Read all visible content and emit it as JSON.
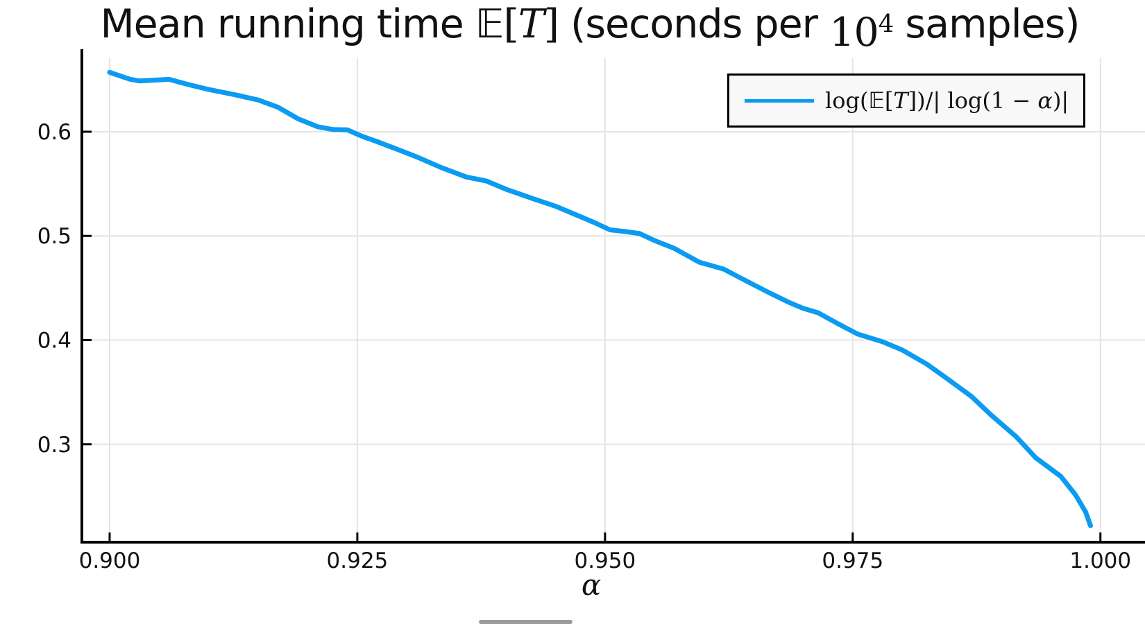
{
  "title": {
    "part1": "Mean running time ",
    "E": "𝔼",
    "lbracket": "[",
    "T": "T",
    "rbracket": "]",
    "part2": " (seconds per ",
    "pow_base": "10",
    "pow_exp": "4",
    "part3": " samples)"
  },
  "legend": {
    "parts": {
      "p1": "log(",
      "E": "𝔼",
      "lb": "[",
      "T": "T",
      "p2": "])/| log(1 − ",
      "alpha": "α",
      "p3": ")|"
    }
  },
  "chart_data": {
    "type": "line",
    "title": "Mean running time E[T] (seconds per 10^4 samples)",
    "xlabel": "α",
    "ylabel": "",
    "xlim": [
      0.8972,
      1.0045
    ],
    "ylim": [
      0.206,
      0.6712
    ],
    "grid": true,
    "legend_position": "top-right",
    "xticks": [
      0.9,
      0.925,
      0.95,
      0.975,
      1.0
    ],
    "xticklabels": [
      "0.900",
      "0.925",
      "0.950",
      "0.975",
      "1.000"
    ],
    "yticks": [
      0.3,
      0.4,
      0.5,
      0.6
    ],
    "yticklabels": [
      "0.3",
      "0.4",
      "0.5",
      "0.6"
    ],
    "series": [
      {
        "name": "log(E[T])/|log(1 − α)|",
        "color": "#0b9bf0",
        "line_width": 7,
        "x": [
          0.9,
          0.902,
          0.903,
          0.9045,
          0.906,
          0.908,
          0.91,
          0.9125,
          0.915,
          0.917,
          0.919,
          0.921,
          0.9225,
          0.924,
          0.9255,
          0.927,
          0.929,
          0.931,
          0.9335,
          0.936,
          0.938,
          0.94,
          0.9425,
          0.945,
          0.9475,
          0.949,
          0.9505,
          0.952,
          0.9535,
          0.955,
          0.957,
          0.9595,
          0.962,
          0.964,
          0.9665,
          0.9685,
          0.97,
          0.9715,
          0.9735,
          0.9755,
          0.978,
          0.98,
          0.9825,
          0.9845,
          0.987,
          0.989,
          0.9915,
          0.9935,
          0.995,
          0.996,
          0.9975,
          0.9985,
          0.999
        ],
        "y": [
          0.657,
          0.6505,
          0.6487,
          0.6495,
          0.6503,
          0.6452,
          0.6405,
          0.6358,
          0.6305,
          0.6235,
          0.6125,
          0.6048,
          0.6022,
          0.6018,
          0.5955,
          0.5905,
          0.5832,
          0.5758,
          0.5655,
          0.5565,
          0.5528,
          0.5448,
          0.5365,
          0.5285,
          0.5185,
          0.5125,
          0.5058,
          0.5042,
          0.5022,
          0.4955,
          0.488,
          0.4748,
          0.468,
          0.458,
          0.4458,
          0.4365,
          0.4305,
          0.4262,
          0.4158,
          0.4058,
          0.3985,
          0.3905,
          0.3768,
          0.3632,
          0.3458,
          0.3278,
          0.3072,
          0.2868,
          0.2762,
          0.2692,
          0.2512,
          0.2352,
          0.2218
        ]
      }
    ]
  }
}
